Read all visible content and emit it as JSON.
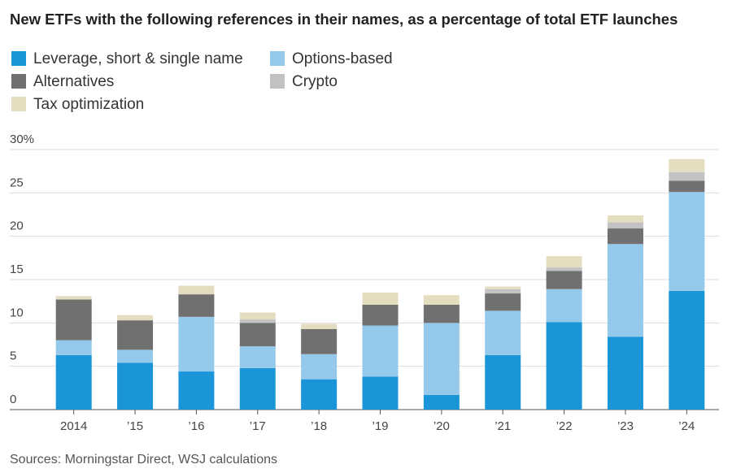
{
  "chart_data": {
    "type": "stacked-bar",
    "title": "New ETFs with the following references in their names, as a percentage of total ETF launches",
    "source": "Sources: Morningstar Direct, WSJ calculations",
    "categories": [
      "2014",
      "’15",
      "’16",
      "’17",
      "’18",
      "’19",
      "’20",
      "’21",
      "’22",
      "’23",
      "’24"
    ],
    "series": [
      {
        "name": "Leverage, short & single name",
        "color": "#1a96d8",
        "values": [
          6.3,
          5.4,
          4.4,
          4.8,
          3.5,
          3.8,
          1.7,
          6.3,
          10.1,
          8.4,
          13.7
        ]
      },
      {
        "name": "Options-based",
        "color": "#95c9ec",
        "values": [
          1.7,
          1.5,
          6.3,
          2.5,
          2.9,
          5.9,
          8.3,
          5.1,
          3.8,
          10.7,
          11.4
        ]
      },
      {
        "name": "Alternatives",
        "color": "#707070",
        "values": [
          4.7,
          3.4,
          2.6,
          2.7,
          2.9,
          2.4,
          2.1,
          2.0,
          2.1,
          1.8,
          1.3
        ]
      },
      {
        "name": "Crypto",
        "color": "#c2c2c2",
        "values": [
          0,
          0,
          0,
          0.4,
          0,
          0,
          0,
          0.5,
          0.4,
          0.7,
          1.0
        ]
      },
      {
        "name": "Tax optimization",
        "color": "#e4ddc0",
        "values": [
          0.4,
          0.6,
          1.0,
          0.8,
          0.6,
          1.4,
          1.1,
          0.3,
          1.3,
          0.8,
          1.5
        ]
      }
    ],
    "ylim": [
      0,
      30
    ],
    "yticks": [
      0,
      5,
      10,
      15,
      20,
      25,
      {
        "value": 30,
        "label": "30%"
      }
    ],
    "grid": true
  }
}
